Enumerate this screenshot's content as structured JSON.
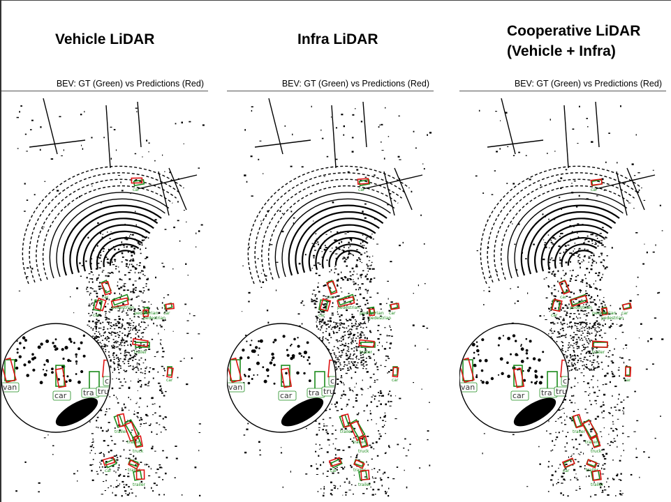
{
  "headers": [
    {
      "line1": "Vehicle LiDAR",
      "line2": ""
    },
    {
      "line1": "Infra LiDAR",
      "line2": ""
    },
    {
      "line1": "Cooperative LiDAR",
      "line2": "(Vehicle + Infra)"
    }
  ],
  "panels": [
    {
      "title": "BEV: GT (Green) vs Predictions (Red)"
    },
    {
      "title": "BEV: GT (Green) vs Predictions (Red)"
    },
    {
      "title": "BEV: GT (Green) vs Predictions (Red)"
    }
  ],
  "legend_colors": {
    "gt": "#1a8a1a",
    "prediction": "#dd1111",
    "points": "#000000"
  },
  "object_labels": [
    "car",
    "pedestrian",
    "truck",
    "trailer",
    "van"
  ],
  "inset_labels": [
    "van",
    "car",
    "tra",
    "truck",
    "car"
  ]
}
